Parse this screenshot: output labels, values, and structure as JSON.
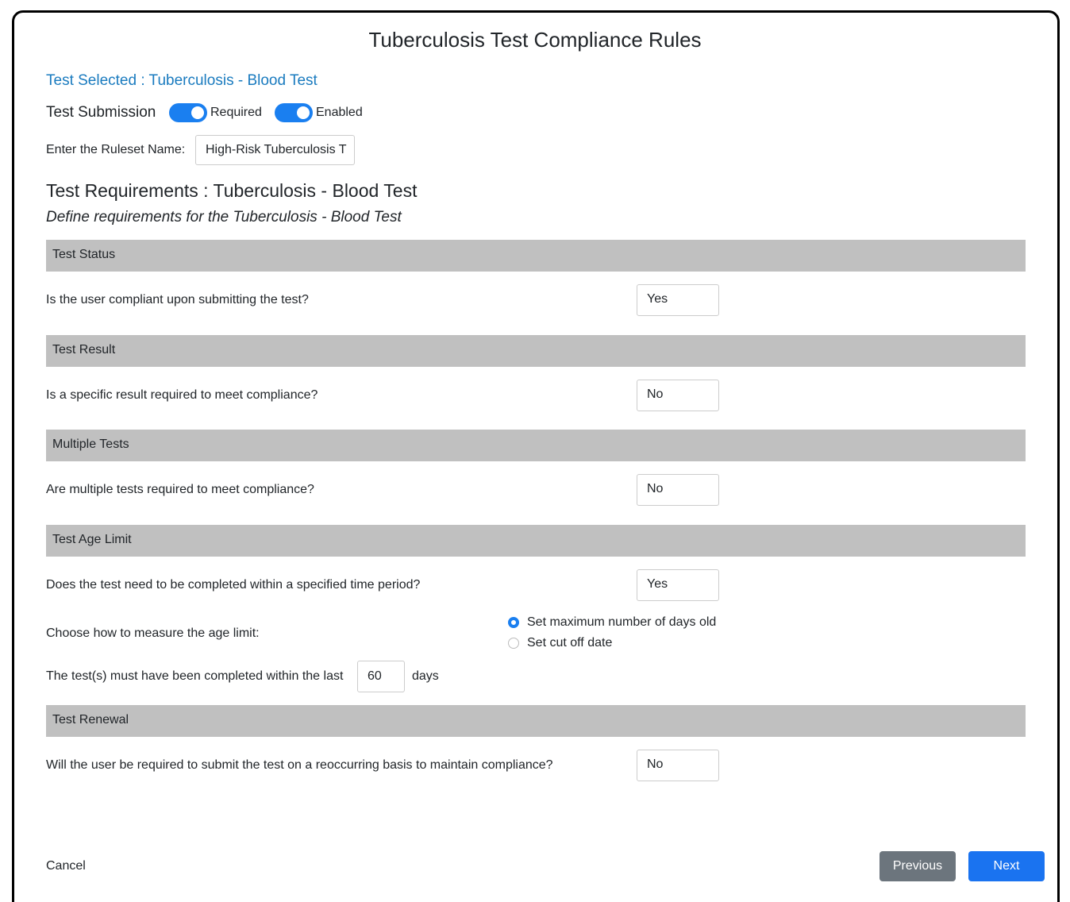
{
  "title": "Tuberculosis Test Compliance Rules",
  "test_selected": "Test Selected : Tuberculosis - Blood Test",
  "submission": {
    "label": "Test Submission",
    "toggles": [
      "Required",
      "Enabled"
    ]
  },
  "ruleset": {
    "label": "Enter the Ruleset Name:",
    "value": "High-Risk Tuberculosis T"
  },
  "requirements": {
    "heading": "Test Requirements : Tuberculosis - Blood Test",
    "subheading": "Define requirements for the Tuberculosis - Blood Test"
  },
  "sections": [
    {
      "header": "Test Status",
      "question": "Is the user compliant upon submitting the test?",
      "answer": "Yes"
    },
    {
      "header": "Test Result",
      "question": "Is a specific result required to meet compliance?",
      "answer": "No"
    },
    {
      "header": "Multiple Tests",
      "question": "Are multiple tests required to meet compliance?",
      "answer": "No"
    },
    {
      "header": "Test Age Limit",
      "question": "Does the test need to be completed within a specified time period?",
      "answer": "Yes",
      "measure_label": "Choose how to measure the age limit:",
      "options": [
        "Set maximum number of days old",
        "Set cut off date"
      ],
      "days_prefix": "The test(s) must have been completed within the last",
      "days_value": "60",
      "days_suffix": "days"
    },
    {
      "header": "Test Renewal",
      "question": "Will the user be required to submit the test on a reoccurring basis to maintain compliance?",
      "answer": "No"
    }
  ],
  "footer": {
    "cancel": "Cancel",
    "previous": "Previous",
    "next": "Next"
  }
}
